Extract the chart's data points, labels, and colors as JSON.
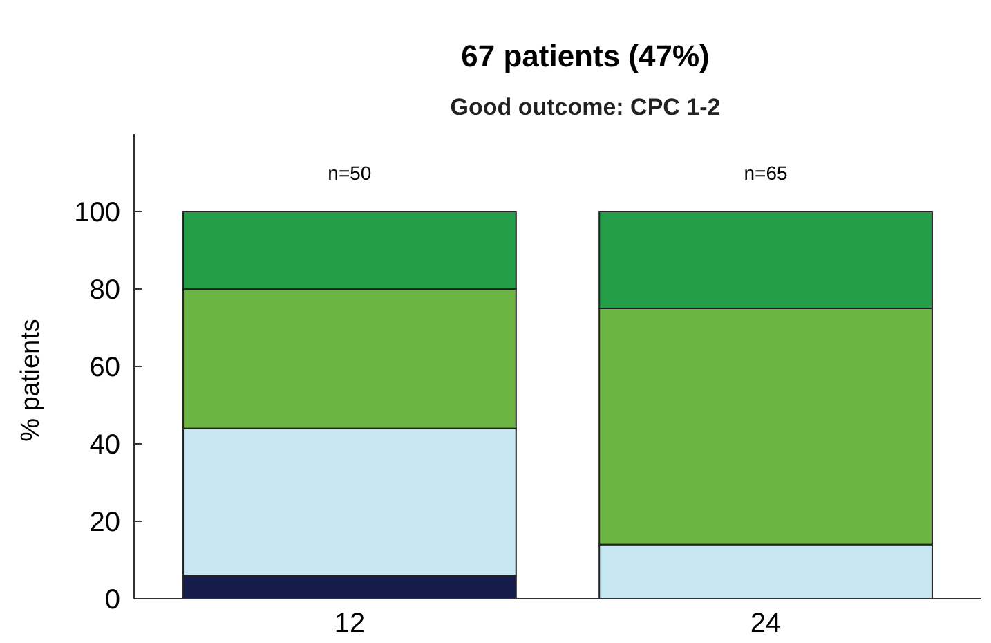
{
  "chart_data": {
    "type": "bar",
    "title": "67 patients (47%)",
    "subtitle": "Good outcome: CPC 1-2",
    "ylabel": "% patients",
    "categories": [
      "12",
      "24"
    ],
    "stacked": true,
    "series": [
      {
        "color": "#151b4a",
        "values": [
          6,
          0
        ]
      },
      {
        "color": "#c6e6f2",
        "values": [
          38,
          14
        ]
      },
      {
        "color": "#6cb543",
        "values": [
          36,
          61
        ]
      },
      {
        "color": "#239d48",
        "values": [
          20,
          25
        ]
      }
    ],
    "ylim": [
      0,
      120
    ],
    "yticks": [
      0,
      20,
      40,
      60,
      80,
      100
    ],
    "grid": false,
    "annotations": [
      "n=50",
      "n=65"
    ]
  }
}
